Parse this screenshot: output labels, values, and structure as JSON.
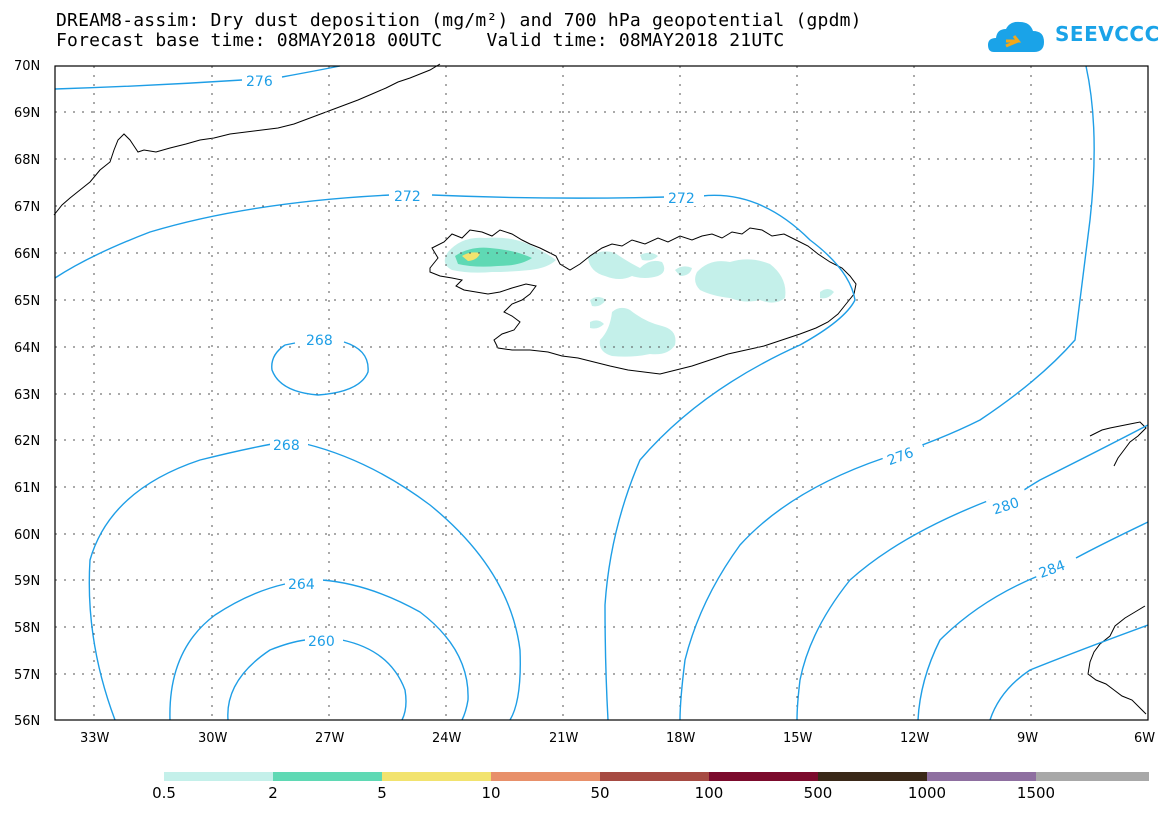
{
  "title": {
    "line1": "DREAM8-assim: Dry dust deposition (mg/m²) and 700 hPa geopotential (gpdm)",
    "line2": "Forecast base time: 08MAY2018 00UTC    Valid time: 08MAY2018 21UTC"
  },
  "logo": {
    "text": "SEEVCCC",
    "icon": "cloud-icon"
  },
  "map": {
    "lat_labels": [
      "70N",
      "69N",
      "68N",
      "67N",
      "66N",
      "65N",
      "64N",
      "63N",
      "62N",
      "61N",
      "60N",
      "59N",
      "58N",
      "57N",
      "56N"
    ],
    "lon_labels": [
      "33W",
      "30W",
      "27W",
      "24W",
      "21W",
      "18W",
      "15W",
      "12W",
      "9W",
      "6W"
    ],
    "contour_labels": [
      "276",
      "272",
      "272",
      "268",
      "268",
      "264",
      "260",
      "276",
      "280",
      "284"
    ],
    "colors": {
      "contour": "#1e9ee6",
      "coast": "#000000",
      "dust_0_5": "#c4f0ea",
      "dust_2": "#5fd9b4",
      "dust_5": "#f2e36e"
    }
  },
  "colorbar": {
    "bins": [
      {
        "color": "#c4f0ea"
      },
      {
        "color": "#5fd9b4"
      },
      {
        "color": "#f2e36e"
      },
      {
        "color": "#e8906a"
      },
      {
        "color": "#a64a42"
      },
      {
        "color": "#7b0a2c"
      },
      {
        "color": "#3a2818"
      },
      {
        "color": "#8e6fa0"
      },
      {
        "color": "#a8a8a8"
      }
    ],
    "labels": [
      "0.5",
      "2",
      "5",
      "10",
      "50",
      "100",
      "500",
      "1000",
      "1500"
    ]
  }
}
